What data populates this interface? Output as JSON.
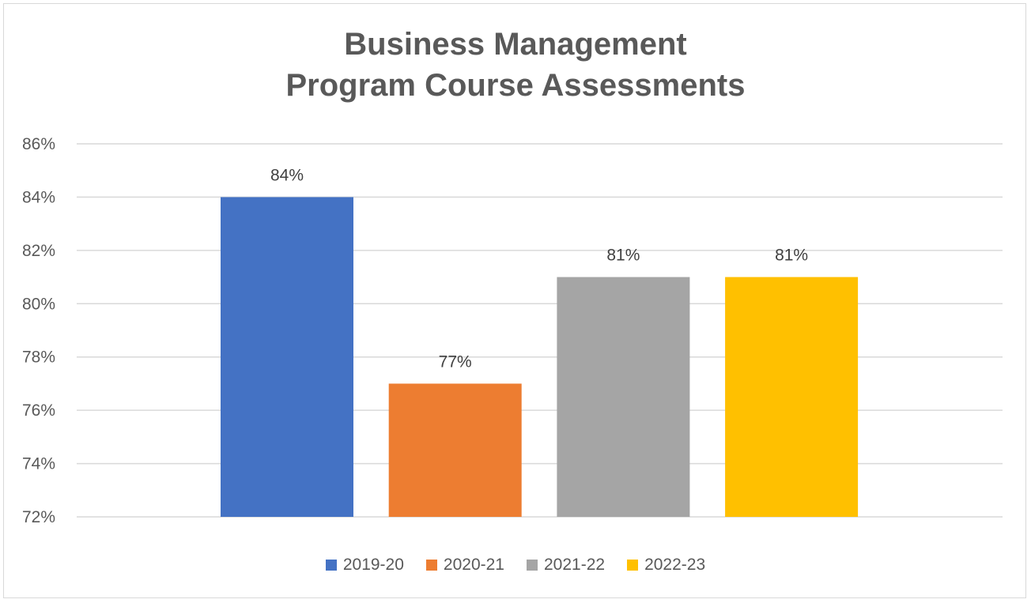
{
  "chart_data": {
    "type": "bar",
    "title_lines": [
      "Business Management",
      "Program Course Assessments"
    ],
    "categories": [
      "2019-20",
      "2020-21",
      "2021-22",
      "2022-23"
    ],
    "values": [
      84,
      77,
      81,
      81
    ],
    "data_labels": [
      "84%",
      "77%",
      "81%",
      "81%"
    ],
    "colors": [
      "#4472c4",
      "#ed7d31",
      "#a5a5a5",
      "#ffc000"
    ],
    "ylim": [
      72,
      86
    ],
    "yticks": [
      72,
      74,
      76,
      78,
      80,
      82,
      84,
      86
    ],
    "ytick_labels": [
      "72%",
      "74%",
      "76%",
      "78%",
      "80%",
      "82%",
      "84%",
      "86%"
    ],
    "grid": true,
    "legend_position": "bottom"
  }
}
